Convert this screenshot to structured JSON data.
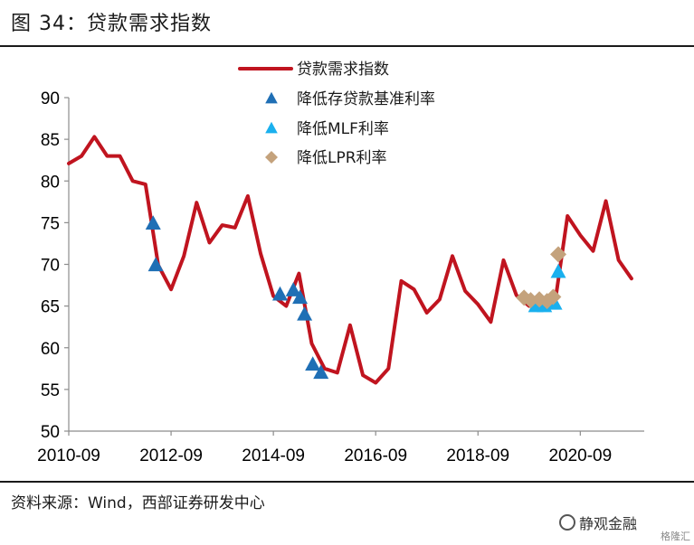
{
  "figure": {
    "title": "图 34：贷款需求指数",
    "source": "资料来源：Wind，西部证券研发中心",
    "watermark": "静观金融",
    "corner_mark": "格隆汇"
  },
  "colors": {
    "line": "#c0141f",
    "rrr_cut": "#1f6fb5",
    "mlf_cut": "#1ab0ee",
    "lpr_cut": "#c4a27c"
  },
  "chart_data": {
    "type": "line",
    "ylim": [
      50,
      90
    ],
    "yticks": [
      50,
      55,
      60,
      65,
      70,
      75,
      80,
      85,
      90
    ],
    "xlim": [
      2010.75,
      2022.0
    ],
    "xticks": [
      {
        "label": "2010-09",
        "value": 2010.75
      },
      {
        "label": "2012-09",
        "value": 2012.75
      },
      {
        "label": "2014-09",
        "value": 2014.75
      },
      {
        "label": "2016-09",
        "value": 2016.75
      },
      {
        "label": "2018-09",
        "value": 2018.75
      },
      {
        "label": "2020-09",
        "value": 2020.75
      }
    ],
    "legend": [
      "贷款需求指数",
      "降低存贷款基准利率",
      "降低MLF利率",
      "降低LPR利率"
    ],
    "legend_position": "top-center",
    "grid": false,
    "series": [
      {
        "name": "贷款需求指数",
        "kind": "line",
        "points": [
          [
            2010.75,
            82.1
          ],
          [
            2011.0,
            83.0
          ],
          [
            2011.25,
            85.3
          ],
          [
            2011.5,
            83.0
          ],
          [
            2011.75,
            83.0
          ],
          [
            2012.0,
            80.0
          ],
          [
            2012.25,
            79.6
          ],
          [
            2012.5,
            69.9
          ],
          [
            2012.75,
            67.0
          ],
          [
            2013.0,
            71.0
          ],
          [
            2013.25,
            77.4
          ],
          [
            2013.5,
            72.6
          ],
          [
            2013.75,
            74.7
          ],
          [
            2014.0,
            74.4
          ],
          [
            2014.25,
            78.2
          ],
          [
            2014.5,
            71.3
          ],
          [
            2014.75,
            66.2
          ],
          [
            2015.0,
            65.0
          ],
          [
            2015.25,
            68.9
          ],
          [
            2015.5,
            60.5
          ],
          [
            2015.75,
            57.5
          ],
          [
            2016.0,
            57.0
          ],
          [
            2016.25,
            62.7
          ],
          [
            2016.5,
            56.7
          ],
          [
            2016.75,
            55.8
          ],
          [
            2017.0,
            57.5
          ],
          [
            2017.25,
            68.0
          ],
          [
            2017.5,
            67.0
          ],
          [
            2017.75,
            64.2
          ],
          [
            2018.0,
            65.8
          ],
          [
            2018.25,
            71.0
          ],
          [
            2018.5,
            66.8
          ],
          [
            2018.75,
            65.2
          ],
          [
            2019.0,
            63.1
          ],
          [
            2019.25,
            70.5
          ],
          [
            2019.5,
            66.3
          ],
          [
            2019.75,
            65.0
          ],
          [
            2020.0,
            66.0
          ],
          [
            2020.25,
            65.2
          ],
          [
            2020.5,
            75.8
          ],
          [
            2020.75,
            73.5
          ],
          [
            2021.0,
            71.6
          ],
          [
            2021.25,
            77.6
          ],
          [
            2021.5,
            70.5
          ],
          [
            2021.75,
            68.3
          ]
        ]
      },
      {
        "name": "降低存贷款基准利率",
        "kind": "triangle",
        "points": [
          [
            2012.4,
            74.9
          ],
          [
            2012.45,
            69.9
          ],
          [
            2014.88,
            66.4
          ],
          [
            2015.14,
            66.9
          ],
          [
            2015.27,
            66.0
          ],
          [
            2015.36,
            64.0
          ],
          [
            2015.52,
            58.0
          ],
          [
            2015.68,
            57.0
          ]
        ]
      },
      {
        "name": "降低MLF利率",
        "kind": "triangle",
        "points": [
          [
            2019.88,
            65.0
          ],
          [
            2020.05,
            65.0
          ],
          [
            2020.25,
            65.3
          ],
          [
            2020.32,
            69.1
          ]
        ]
      },
      {
        "name": "降低LPR利率",
        "kind": "diamond",
        "points": [
          [
            2019.65,
            66.0
          ],
          [
            2019.78,
            65.7
          ],
          [
            2019.95,
            65.8
          ],
          [
            2020.1,
            65.6
          ],
          [
            2020.22,
            66.1
          ],
          [
            2020.32,
            71.2
          ]
        ]
      }
    ]
  }
}
